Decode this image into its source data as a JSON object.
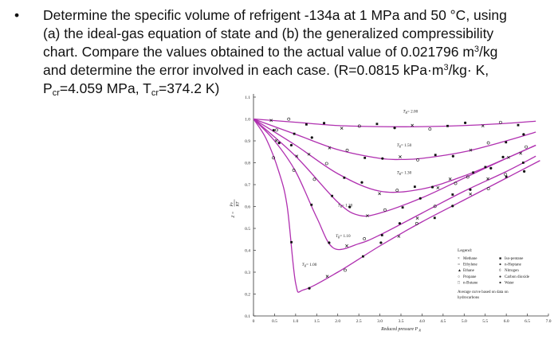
{
  "problem": {
    "bullet": "•",
    "l1": "Determine the specific volume of refrigent -134a at 1 MPa and 50 °C, using",
    "l2": "(a) the ideal-gas equation of state and (b) the generalized compressibility",
    "l3a": "chart. Compare the values obtained to the actual value of 0.021796 m",
    "l3sup": "3",
    "l3b": "/kg",
    "l4a": "and determine the error involved in each case. (R=0.0815 kPa·m",
    "l4sup": "3",
    "l4b": "/kg· K,",
    "l5_p": "P",
    "l5_psub": "cr",
    "l5_pval": "=4.059 MPa, T",
    "l5_tsub": "cr",
    "l5_tval": "=374.2 K)"
  },
  "chart_data": {
    "type": "scatter",
    "xlabel": "Reduced pressure P",
    "xlabel_sub": "R",
    "ylabel_top": "Pv",
    "ylabel_bottom": "RT",
    "ylabel_prefix": "Z =",
    "xlim": [
      0,
      7.0
    ],
    "ylim": [
      0.1,
      1.1
    ],
    "xticks": [
      "0",
      "0.5",
      "1.0",
      "1.5",
      "2.0",
      "2.5",
      "3.0",
      "3.5",
      "4.0",
      "4.5",
      "5.0",
      "5.5",
      "6.0",
      "6.5",
      "7.0"
    ],
    "yticks": [
      "0.1",
      "0.2",
      "0.3",
      "0.4",
      "0.5",
      "0.6",
      "0.7",
      "0.8",
      "0.9",
      "1.0",
      "1.1"
    ],
    "curves": [
      {
        "label": "T_R = 2.00",
        "x": [
          0,
          1,
          2,
          3,
          4,
          5,
          6,
          6.7
        ],
        "y": [
          1.0,
          0.985,
          0.97,
          0.965,
          0.965,
          0.97,
          0.98,
          0.99
        ]
      },
      {
        "label": "T_R = 1.50",
        "x": [
          0,
          1,
          2,
          3,
          3.5,
          4,
          5,
          6,
          6.7
        ],
        "y": [
          1.0,
          0.93,
          0.86,
          0.82,
          0.815,
          0.82,
          0.85,
          0.9,
          0.94
        ]
      },
      {
        "label": "T_R = 1.30",
        "x": [
          0,
          1,
          2,
          3,
          4,
          5,
          6,
          6.7
        ],
        "y": [
          1.0,
          0.88,
          0.75,
          0.67,
          0.68,
          0.74,
          0.82,
          0.88
        ]
      },
      {
        "label": "T_R = 1.20",
        "x": [
          0,
          1,
          2,
          2.5,
          3,
          4,
          5,
          6,
          6.7
        ],
        "y": [
          1.0,
          0.83,
          0.62,
          0.56,
          0.57,
          0.64,
          0.73,
          0.82,
          0.88
        ]
      },
      {
        "label": "T_R = 1.10",
        "x": [
          0,
          0.5,
          1,
          1.5,
          1.9,
          2.5,
          3,
          4,
          5,
          6,
          6.7
        ],
        "y": [
          1.0,
          0.9,
          0.76,
          0.55,
          0.41,
          0.43,
          0.47,
          0.57,
          0.67,
          0.76,
          0.83
        ]
      },
      {
        "label": "T_R = 1.00",
        "x": [
          0,
          0.3,
          0.6,
          0.8,
          1.0,
          1.2,
          2,
          3,
          4,
          5,
          6,
          6.8
        ],
        "y": [
          1.0,
          0.91,
          0.76,
          0.6,
          0.25,
          0.22,
          0.3,
          0.42,
          0.53,
          0.63,
          0.73,
          0.81
        ]
      }
    ],
    "curve_labels": [
      {
        "text": "T",
        "sub": "R",
        "val": "= 2.00",
        "x": 3.55,
        "y": 1.03
      },
      {
        "text": "T",
        "sub": "R",
        "val": "= 1.50",
        "x": 3.4,
        "y": 0.875
      },
      {
        "text": "T",
        "sub": "R",
        "val": "= 1.30",
        "x": 3.4,
        "y": 0.75
      },
      {
        "text": "T",
        "sub": "R",
        "val": "= 1.20",
        "x": 2.0,
        "y": 0.6
      },
      {
        "text": "T",
        "sub": "R",
        "val": "= 1.10",
        "x": 1.95,
        "y": 0.46
      },
      {
        "text": "T",
        "sub": "R",
        "val": "= 1.00",
        "x": 1.15,
        "y": 0.33
      }
    ],
    "legend": {
      "title": "Legend:",
      "col1": [
        "Methane",
        "Ethylene",
        "Ethane",
        "Propane",
        "n-Butane"
      ],
      "col1_markers": [
        "×",
        "○",
        "▲",
        "○",
        "□"
      ],
      "col2": [
        "Iso-pentane",
        "n-Heptane",
        "Nitrogen",
        "Carbon dioxide",
        "Water"
      ],
      "col2_markers": [
        "■",
        "●",
        "◊",
        "●",
        "●"
      ],
      "note1": "Average curve based on data on",
      "note2": "hydrocarbons"
    },
    "colors": {
      "curve": "#b030b0",
      "marker": "#111111",
      "axis": "#333333"
    }
  }
}
